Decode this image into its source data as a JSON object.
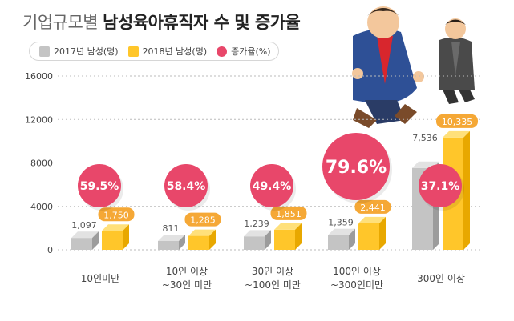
{
  "title": {
    "light": "기업규모별",
    "bold": "남성육아휴직자 수 및 증가율"
  },
  "legend": {
    "s2017": "2017년 남성(명)",
    "s2018": "2018년 남성(명)",
    "rate": "증가율(%)"
  },
  "colors": {
    "gray": "#c4c4c4",
    "yellow": "#ffc62a",
    "pink": "#e8476a",
    "orangeLabel": "#f5a836"
  },
  "chart_data": {
    "type": "bar",
    "categories": [
      "10인미만",
      "10인 이상\n~30인 미만",
      "30인 이상\n~100인 미만",
      "100인 이상\n~300인미만",
      "300인 이상"
    ],
    "series": [
      {
        "name": "2017년 남성(명)",
        "values": [
          1097,
          811,
          1239,
          1359,
          7536
        ],
        "labels": [
          "1,097",
          "811",
          "1,239",
          "1,359",
          "7,536"
        ]
      },
      {
        "name": "2018년 남성(명)",
        "values": [
          1750,
          1285,
          1851,
          2441,
          10335
        ],
        "labels": [
          "1,750",
          "1,285",
          "1,851",
          "2,441",
          "10,335"
        ]
      }
    ],
    "growth_rate": {
      "name": "증가율(%)",
      "values": [
        59.5,
        58.4,
        49.4,
        79.6,
        37.1
      ],
      "labels": [
        "59.5%",
        "58.4%",
        "49.4%",
        "79.6%",
        "37.1%"
      ]
    },
    "yticks": [
      0,
      4000,
      8000,
      12000,
      16000
    ],
    "ytick_labels": [
      "0",
      "4000",
      "8000",
      "12000",
      "16000"
    ],
    "ylim": [
      0,
      16000
    ],
    "grid": true
  }
}
